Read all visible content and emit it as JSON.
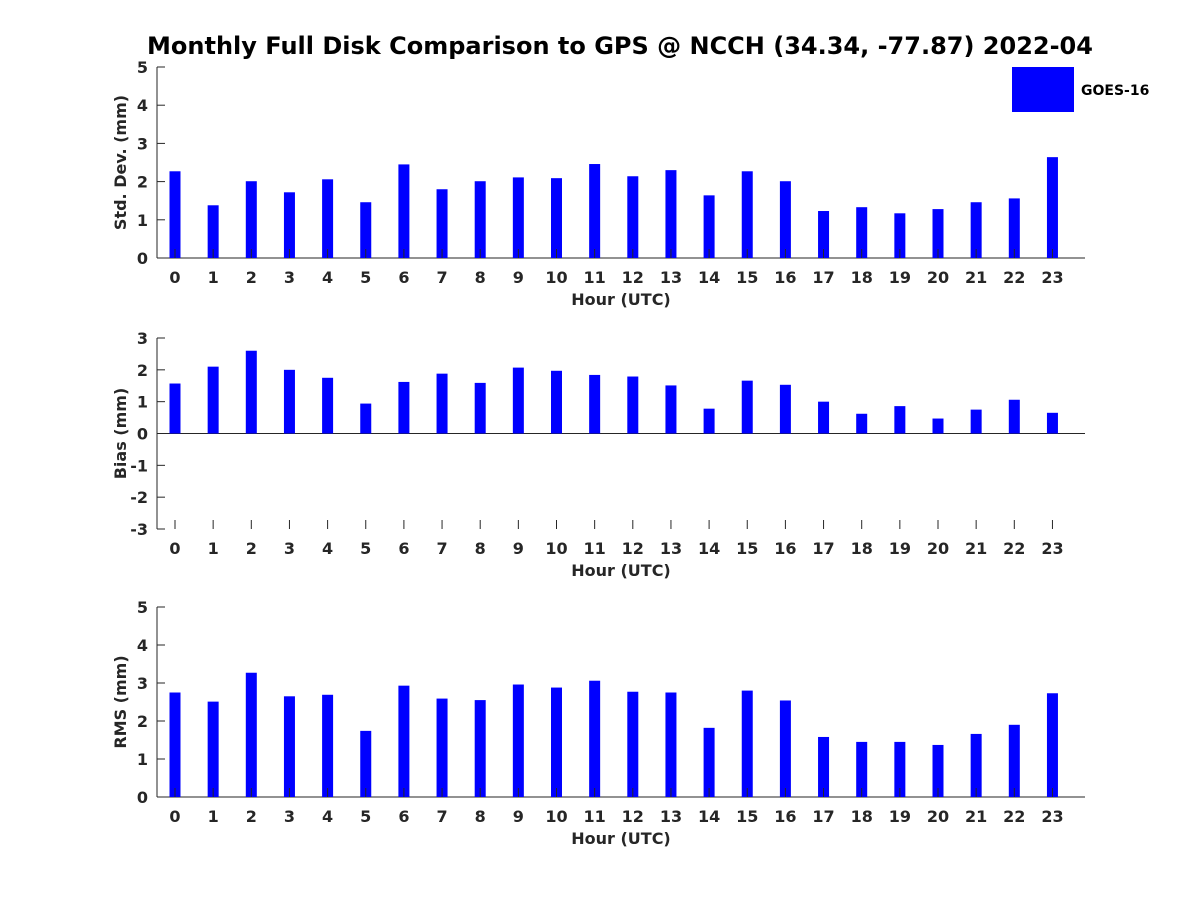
{
  "figure": {
    "title": "Monthly Full Disk Comparison to GPS @ NCCH (34.34, -77.87) 2022-04"
  },
  "legend": {
    "label": "GOES-16",
    "color": "#0000ff",
    "placement": "top-right"
  },
  "chart_data": [
    {
      "type": "bar",
      "ylabel": "Std. Dev. (mm)",
      "xlabel": "Hour (UTC)",
      "ylim": [
        0,
        5
      ],
      "yticks": [
        0,
        1,
        2,
        3,
        4,
        5
      ],
      "categories": [
        "0",
        "1",
        "2",
        "3",
        "4",
        "5",
        "6",
        "7",
        "8",
        "9",
        "10",
        "11",
        "12",
        "13",
        "14",
        "15",
        "16",
        "17",
        "18",
        "19",
        "20",
        "21",
        "22",
        "23"
      ],
      "series": [
        {
          "name": "GOES-16",
          "color": "#0000ff",
          "values": [
            2.27,
            1.38,
            2.01,
            1.72,
            2.06,
            1.46,
            2.45,
            1.8,
            2.01,
            2.11,
            2.09,
            2.46,
            2.14,
            2.3,
            1.64,
            2.27,
            2.01,
            1.23,
            1.33,
            1.17,
            1.28,
            1.46,
            1.56,
            2.64
          ]
        }
      ]
    },
    {
      "type": "bar",
      "ylabel": "Bias (mm)",
      "xlabel": "Hour (UTC)",
      "ylim": [
        -3,
        3
      ],
      "yticks": [
        -3,
        -2,
        -1,
        0,
        1,
        2,
        3
      ],
      "categories": [
        "0",
        "1",
        "2",
        "3",
        "4",
        "5",
        "6",
        "7",
        "8",
        "9",
        "10",
        "11",
        "12",
        "13",
        "14",
        "15",
        "16",
        "17",
        "18",
        "19",
        "20",
        "21",
        "22",
        "23"
      ],
      "series": [
        {
          "name": "GOES-16",
          "color": "#0000ff",
          "values": [
            1.57,
            2.1,
            2.6,
            2.0,
            1.75,
            0.94,
            1.62,
            1.88,
            1.59,
            2.07,
            1.97,
            1.84,
            1.79,
            1.51,
            0.78,
            1.66,
            1.53,
            1.0,
            0.62,
            0.86,
            0.47,
            0.75,
            1.06,
            0.65
          ]
        }
      ]
    },
    {
      "type": "bar",
      "ylabel": "RMS (mm)",
      "xlabel": "Hour (UTC)",
      "ylim": [
        0,
        5
      ],
      "yticks": [
        0,
        1,
        2,
        3,
        4,
        5
      ],
      "categories": [
        "0",
        "1",
        "2",
        "3",
        "4",
        "5",
        "6",
        "7",
        "8",
        "9",
        "10",
        "11",
        "12",
        "13",
        "14",
        "15",
        "16",
        "17",
        "18",
        "19",
        "20",
        "21",
        "22",
        "23"
      ],
      "series": [
        {
          "name": "GOES-16",
          "color": "#0000ff",
          "values": [
            2.75,
            2.51,
            3.27,
            2.65,
            2.69,
            1.74,
            2.93,
            2.59,
            2.55,
            2.96,
            2.88,
            3.06,
            2.77,
            2.75,
            1.82,
            2.8,
            2.54,
            1.58,
            1.45,
            1.45,
            1.37,
            1.66,
            1.9,
            2.73
          ]
        }
      ]
    }
  ]
}
